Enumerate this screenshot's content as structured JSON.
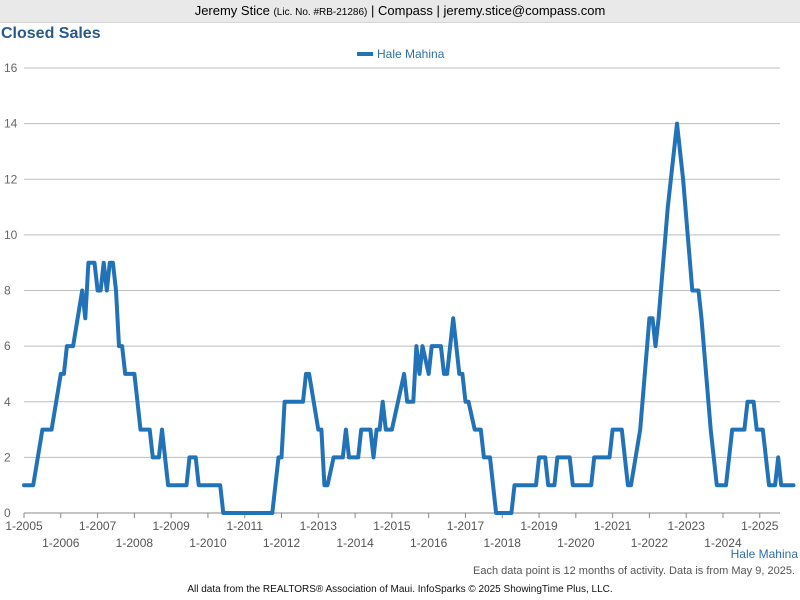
{
  "header": {
    "name": "Jeremy Stice",
    "license": "(Lic. No. #RB-21286)",
    "rest": "| Compass | jeremy.stice@compass.com"
  },
  "footer": {
    "note": "Each data point is 12 months of activity. Data is from May 9, 2025.",
    "credit": "All data from the REALTORS® Association of Maui. InfoSparks © 2025 ShowingTime Plus, LLC."
  },
  "colors": {
    "series": "#2272b8",
    "title": "#2a5a8a",
    "grid": "#bdbdbd"
  },
  "chart_data": {
    "type": "line",
    "title": "Closed Sales",
    "area_label": "Hale Mahina",
    "legend_position": "top-center",
    "grid": true,
    "ylim": [
      0,
      16
    ],
    "yticks": [
      0,
      2,
      4,
      6,
      8,
      10,
      12,
      14,
      16
    ],
    "xticks_upper": [
      "1-2005",
      "1-2007",
      "1-2009",
      "1-2011",
      "1-2013",
      "1-2015",
      "1-2017",
      "1-2019",
      "1-2021",
      "1-2023",
      "1-2025"
    ],
    "xticks_lower": [
      "1-2006",
      "1-2008",
      "1-2010",
      "1-2012",
      "1-2014",
      "1-2016",
      "1-2018",
      "1-2020",
      "1-2022",
      "1-2024"
    ],
    "series": [
      {
        "name": "Hale Mahina",
        "points": [
          [
            "2005-01",
            1
          ],
          [
            "2005-04",
            1
          ],
          [
            "2005-07",
            3
          ],
          [
            "2005-10",
            3
          ],
          [
            "2006-01",
            5
          ],
          [
            "2006-02",
            5
          ],
          [
            "2006-03",
            6
          ],
          [
            "2006-05",
            6
          ],
          [
            "2006-08",
            8
          ],
          [
            "2006-09",
            7
          ],
          [
            "2006-10",
            9
          ],
          [
            "2006-12",
            9
          ],
          [
            "2007-01",
            8
          ],
          [
            "2007-02",
            8
          ],
          [
            "2007-03",
            9
          ],
          [
            "2007-04",
            8
          ],
          [
            "2007-05",
            9
          ],
          [
            "2007-06",
            9
          ],
          [
            "2007-07",
            8
          ],
          [
            "2007-08",
            6
          ],
          [
            "2007-09",
            6
          ],
          [
            "2007-10",
            5
          ],
          [
            "2008-01",
            5
          ],
          [
            "2008-03",
            3
          ],
          [
            "2008-06",
            3
          ],
          [
            "2008-07",
            2
          ],
          [
            "2008-09",
            2
          ],
          [
            "2008-10",
            3
          ],
          [
            "2008-12",
            1
          ],
          [
            "2009-06",
            1
          ],
          [
            "2009-07",
            2
          ],
          [
            "2009-09",
            2
          ],
          [
            "2009-10",
            1
          ],
          [
            "2010-05",
            1
          ],
          [
            "2010-06",
            0
          ],
          [
            "2011-10",
            0
          ],
          [
            "2011-12",
            2
          ],
          [
            "2012-01",
            2
          ],
          [
            "2012-02",
            4
          ],
          [
            "2012-08",
            4
          ],
          [
            "2012-09",
            5
          ],
          [
            "2012-10",
            5
          ],
          [
            "2013-01",
            3
          ],
          [
            "2013-02",
            3
          ],
          [
            "2013-03",
            1
          ],
          [
            "2013-04",
            1
          ],
          [
            "2013-06",
            2
          ],
          [
            "2013-09",
            2
          ],
          [
            "2013-10",
            3
          ],
          [
            "2013-11",
            2
          ],
          [
            "2014-02",
            2
          ],
          [
            "2014-03",
            3
          ],
          [
            "2014-06",
            3
          ],
          [
            "2014-07",
            2
          ],
          [
            "2014-08",
            3
          ],
          [
            "2014-09",
            3
          ],
          [
            "2014-10",
            4
          ],
          [
            "2014-11",
            3
          ],
          [
            "2015-01",
            3
          ],
          [
            "2015-05",
            5
          ],
          [
            "2015-06",
            4
          ],
          [
            "2015-08",
            4
          ],
          [
            "2015-09",
            6
          ],
          [
            "2015-10",
            5
          ],
          [
            "2015-11",
            6
          ],
          [
            "2016-01",
            5
          ],
          [
            "2016-02",
            6
          ],
          [
            "2016-05",
            6
          ],
          [
            "2016-06",
            5
          ],
          [
            "2016-07",
            5
          ],
          [
            "2016-09",
            7
          ],
          [
            "2016-10",
            6
          ],
          [
            "2016-11",
            5
          ],
          [
            "2016-12",
            5
          ],
          [
            "2017-01",
            4
          ],
          [
            "2017-02",
            4
          ],
          [
            "2017-04",
            3
          ],
          [
            "2017-06",
            3
          ],
          [
            "2017-07",
            2
          ],
          [
            "2017-09",
            2
          ],
          [
            "2017-11",
            0
          ],
          [
            "2018-04",
            0
          ],
          [
            "2018-05",
            1
          ],
          [
            "2018-12",
            1
          ],
          [
            "2019-01",
            2
          ],
          [
            "2019-03",
            2
          ],
          [
            "2019-04",
            1
          ],
          [
            "2019-06",
            1
          ],
          [
            "2019-07",
            2
          ],
          [
            "2019-11",
            2
          ],
          [
            "2019-12",
            1
          ],
          [
            "2020-06",
            1
          ],
          [
            "2020-07",
            2
          ],
          [
            "2020-12",
            2
          ],
          [
            "2021-01",
            3
          ],
          [
            "2021-04",
            3
          ],
          [
            "2021-06",
            1
          ],
          [
            "2021-07",
            1
          ],
          [
            "2021-10",
            3
          ],
          [
            "2022-01",
            7
          ],
          [
            "2022-02",
            7
          ],
          [
            "2022-03",
            6
          ],
          [
            "2022-04",
            7
          ],
          [
            "2022-07",
            11
          ],
          [
            "2022-10",
            14
          ],
          [
            "2022-12",
            12
          ],
          [
            "2023-03",
            8
          ],
          [
            "2023-05",
            8
          ],
          [
            "2023-06",
            7
          ],
          [
            "2023-09",
            3
          ],
          [
            "2023-11",
            1
          ],
          [
            "2024-02",
            1
          ],
          [
            "2024-04",
            3
          ],
          [
            "2024-08",
            3
          ],
          [
            "2024-09",
            4
          ],
          [
            "2024-11",
            4
          ],
          [
            "2024-12",
            3
          ],
          [
            "2025-02",
            3
          ],
          [
            "2025-04",
            1
          ],
          [
            "2025-06",
            1
          ],
          [
            "2025-07",
            2
          ],
          [
            "2025-08",
            1
          ],
          [
            "2025-12",
            1
          ]
        ]
      }
    ]
  }
}
